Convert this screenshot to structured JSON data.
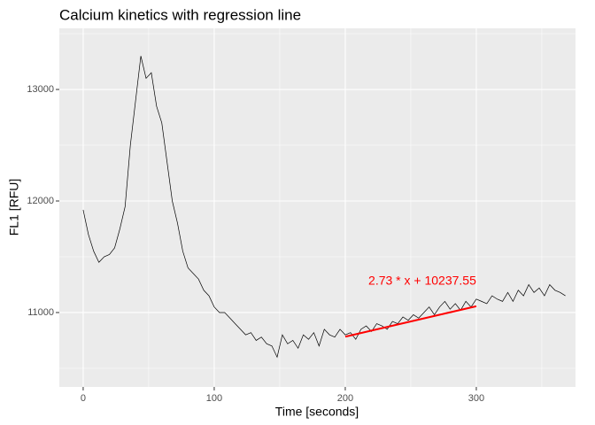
{
  "chart_data": {
    "type": "line",
    "title": "Calcium kinetics with regression line",
    "xlabel": "Time [seconds]",
    "ylabel": "FL1 [RFU]",
    "x": [
      0,
      4,
      8,
      12,
      16,
      20,
      24,
      28,
      32,
      36,
      40,
      44,
      48,
      52,
      56,
      60,
      64,
      68,
      72,
      76,
      80,
      84,
      88,
      92,
      96,
      100,
      104,
      108,
      112,
      116,
      120,
      124,
      128,
      132,
      136,
      140,
      144,
      148,
      152,
      156,
      160,
      164,
      168,
      172,
      176,
      180,
      184,
      188,
      192,
      196,
      200,
      204,
      208,
      212,
      216,
      220,
      224,
      228,
      232,
      236,
      240,
      244,
      248,
      252,
      256,
      260,
      264,
      268,
      272,
      276,
      280,
      284,
      288,
      292,
      296,
      300,
      304,
      308,
      312,
      316,
      320,
      324,
      328,
      332,
      336,
      340,
      344,
      348,
      352,
      356,
      360,
      364,
      368
    ],
    "series": [
      {
        "color": "#000000",
        "values": [
          11920,
          11700,
          11550,
          11450,
          11500,
          11520,
          11580,
          11750,
          11950,
          12500,
          12900,
          13300,
          13100,
          13150,
          12850,
          12700,
          12350,
          12000,
          11800,
          11550,
          11400,
          11350,
          11300,
          11200,
          11150,
          11050,
          11000,
          11000,
          10950,
          10900,
          10850,
          10800,
          10820,
          10750,
          10780,
          10720,
          10700,
          10600,
          10800,
          10720,
          10750,
          10680,
          10800,
          10760,
          10820,
          10700,
          10850,
          10800,
          10780,
          10850,
          10800,
          10820,
          10760,
          10850,
          10880,
          10830,
          10900,
          10880,
          10850,
          10920,
          10900,
          10960,
          10930,
          10980,
          10950,
          11000,
          11050,
          10980,
          11050,
          11100,
          11030,
          11080,
          11020,
          11100,
          11050,
          11120,
          11100,
          11080,
          11150,
          11120,
          11100,
          11180,
          11100,
          11200,
          11150,
          11250,
          11180,
          11220,
          11150,
          11250,
          11200,
          11180,
          11150
        ]
      }
    ],
    "regression": {
      "slope": 2.73,
      "intercept": 10237.55,
      "xrange": [
        200,
        300
      ],
      "label": "2.73 * x + 10237.55",
      "color": "#ff0000"
    },
    "xlim": [
      -18.2,
      375.7
    ],
    "ylim": [
      10333,
      13548
    ],
    "xticks": [
      0,
      100,
      200,
      300
    ],
    "yticks": [
      11000,
      12000,
      13000
    ],
    "xminorticks": [
      50,
      150,
      250,
      350
    ],
    "yminorticks": [
      10500,
      11500,
      12500,
      13500
    ],
    "grid": true
  }
}
